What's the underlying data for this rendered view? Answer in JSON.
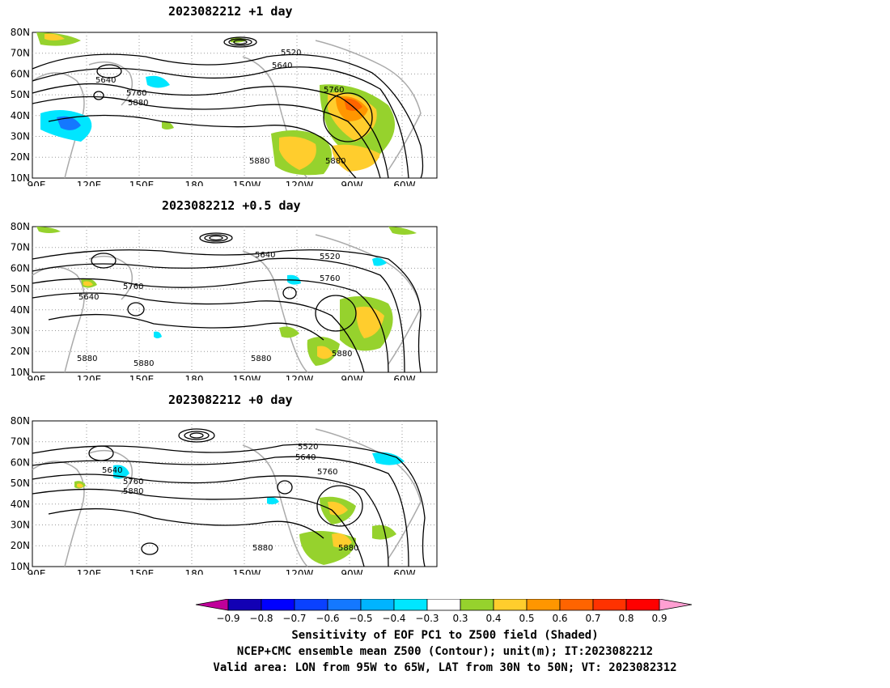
{
  "panels": [
    {
      "title": "2023082212 +1 day",
      "contour_labels": [
        "5520",
        "5640",
        "5640",
        "5760",
        "5760",
        "5880",
        "5880",
        "5880"
      ]
    },
    {
      "title": "2023082212 +0.5 day",
      "contour_labels": [
        "5640",
        "5520",
        "5760",
        "5640",
        "5760",
        "5880",
        "5880",
        "5880",
        "5880"
      ]
    },
    {
      "title": "2023082212 +0 day",
      "contour_labels": [
        "5520",
        "5640",
        "5640",
        "5760",
        "5760",
        "5880",
        "5880",
        "5880"
      ]
    }
  ],
  "axes": {
    "lat_labels": [
      "80N",
      "70N",
      "60N",
      "50N",
      "40N",
      "30N",
      "20N",
      "10N"
    ],
    "lon_labels": [
      "90E",
      "120E",
      "150E",
      "180",
      "150W",
      "120W",
      "90W",
      "60W"
    ]
  },
  "colorbar": {
    "ticks": [
      "-0.9",
      "-0.8",
      "-0.7",
      "-0.6",
      "-0.5",
      "-0.4",
      "-0.3",
      "0.3",
      "0.4",
      "0.5",
      "0.6",
      "0.7",
      "0.8",
      "0.9"
    ],
    "colors": [
      "#c0009a",
      "#1200b4",
      "#0000ff",
      "#0a41ff",
      "#1478ff",
      "#00b4ff",
      "#00e6ff",
      "#ffffff",
      "#96d22d",
      "#ffcd2d",
      "#ff9600",
      "#ff6400",
      "#ff3200",
      "#ff0000",
      "#ff9fd2"
    ]
  },
  "captions": [
    "Sensitivity of EOF PC1 to Z500 field (Shaded)",
    "NCEP+CMC ensemble mean Z500 (Contour); unit(m); IT:2023082212",
    "Valid area: LON from 95W to 65W, LAT from 30N to 50N; VT: 2023082312"
  ]
}
